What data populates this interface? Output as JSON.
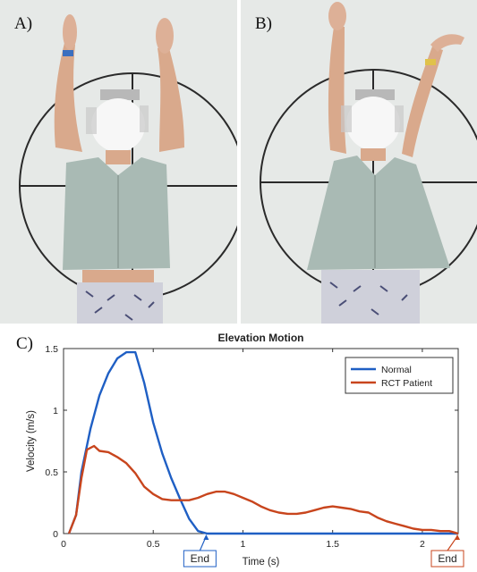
{
  "panels": {
    "a_label": "A)",
    "b_label": "B)",
    "c_label": "C)"
  },
  "chart_data": {
    "type": "line",
    "title": "Elevation Motion",
    "xlabel": "Time (s)",
    "ylabel": "Velocity (m/s)",
    "xlim": [
      0,
      2.2
    ],
    "ylim": [
      0,
      1.5
    ],
    "xticks": [
      0,
      0.5,
      1,
      1.5,
      2
    ],
    "xtick_labels": [
      "0",
      "0.5",
      "1",
      "1.5",
      "2"
    ],
    "yticks": [
      0,
      0.5,
      1,
      1.5
    ],
    "ytick_labels": [
      "0",
      "0.5",
      "1",
      "1.5"
    ],
    "legend_position": "top-right",
    "grid": false,
    "series": [
      {
        "name": "Normal",
        "color": "#1f5fc4",
        "x": [
          0.03,
          0.07,
          0.1,
          0.15,
          0.2,
          0.25,
          0.3,
          0.35,
          0.4,
          0.45,
          0.5,
          0.55,
          0.6,
          0.65,
          0.7,
          0.75,
          0.8,
          2.2
        ],
        "y": [
          0.0,
          0.15,
          0.5,
          0.85,
          1.12,
          1.3,
          1.42,
          1.47,
          1.47,
          1.22,
          0.9,
          0.65,
          0.45,
          0.28,
          0.12,
          0.02,
          0.0,
          0.0
        ]
      },
      {
        "name": "RCT Patient",
        "color": "#c8451d",
        "x": [
          0.03,
          0.07,
          0.1,
          0.13,
          0.17,
          0.2,
          0.25,
          0.3,
          0.35,
          0.4,
          0.45,
          0.5,
          0.55,
          0.6,
          0.65,
          0.7,
          0.75,
          0.8,
          0.85,
          0.9,
          0.95,
          1.0,
          1.05,
          1.1,
          1.15,
          1.2,
          1.25,
          1.3,
          1.35,
          1.4,
          1.45,
          1.5,
          1.55,
          1.6,
          1.65,
          1.7,
          1.75,
          1.8,
          1.85,
          1.9,
          1.95,
          2.0,
          2.05,
          2.1,
          2.15,
          2.2
        ],
        "y": [
          0.0,
          0.15,
          0.45,
          0.68,
          0.71,
          0.67,
          0.66,
          0.62,
          0.57,
          0.49,
          0.38,
          0.32,
          0.28,
          0.27,
          0.27,
          0.27,
          0.29,
          0.32,
          0.34,
          0.34,
          0.32,
          0.29,
          0.26,
          0.22,
          0.19,
          0.17,
          0.16,
          0.16,
          0.17,
          0.19,
          0.21,
          0.22,
          0.21,
          0.2,
          0.18,
          0.17,
          0.13,
          0.1,
          0.08,
          0.06,
          0.04,
          0.03,
          0.03,
          0.02,
          0.02,
          0.0
        ]
      }
    ],
    "annotations": [
      {
        "text": "End",
        "x": 0.8,
        "color": "#1f5fc4"
      },
      {
        "text": "End",
        "x": 2.2,
        "color": "#c8451d"
      }
    ]
  }
}
